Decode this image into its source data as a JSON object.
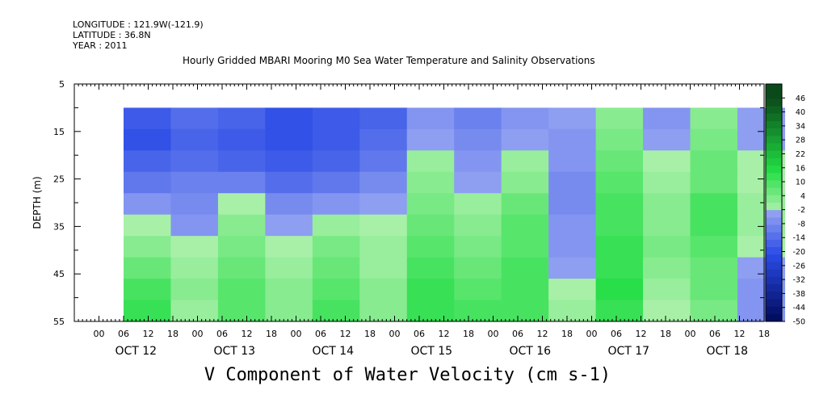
{
  "header": {
    "longitude": "LONGITUDE : 121.9W(-121.9)",
    "latitude": "LATITUDE : 36.8N",
    "year": "YEAR : 2011"
  },
  "title": "Hourly Gridded MBARI Mooring M0 Sea Water Temperature and Salinity Observations",
  "variable_label": "V Component of Water Velocity (cm s-1)",
  "colors": {
    "negative_dark": "#000a5a",
    "negative_mid": "#2a4be6",
    "negative_light": "#9aa8f2",
    "positive_light": "#a8f0a8",
    "positive_mid": "#22dd44",
    "positive_dark": "#0a4a1a"
  },
  "chart_data": {
    "type": "heatmap",
    "title": "Hourly Gridded MBARI Mooring M0 Sea Water Temperature and Salinity Observations",
    "ylabel": "DEPTH (m)",
    "xlabel": "",
    "ylim": [
      55,
      5
    ],
    "y_ticks": [
      5,
      15,
      25,
      35,
      45,
      55
    ],
    "x_days": [
      "OCT 12",
      "OCT 13",
      "OCT 14",
      "OCT 15",
      "OCT 16",
      "OCT 17",
      "OCT 18"
    ],
    "x_hour_labels": [
      "00",
      "06",
      "12",
      "18"
    ],
    "data_extent": {
      "depth_top": 10,
      "depth_bottom": 55,
      "start": "Oct 12 06:00",
      "end": "Oct 18 23:00"
    },
    "colorbar_levels": [
      -50,
      -44,
      -38,
      -32,
      -26,
      -20,
      -14,
      -8,
      -2,
      4,
      10,
      16,
      22,
      28,
      34,
      40,
      46
    ],
    "grid": false,
    "legend_position": "right",
    "depths": [
      10,
      15,
      20,
      25,
      30,
      35,
      40,
      45,
      50,
      55
    ],
    "times": [
      "Oct12 06",
      "Oct12 18",
      "Oct13 06",
      "Oct13 18",
      "Oct14 06",
      "Oct14 18",
      "Oct15 06",
      "Oct15 18",
      "Oct16 06",
      "Oct16 18",
      "Oct17 06",
      "Oct17 18",
      "Oct18 06",
      "Oct18 18"
    ],
    "values": [
      [
        -18,
        -14,
        -16,
        -20,
        -18,
        -16,
        -6,
        -10,
        -6,
        -4,
        2,
        -6,
        2,
        -4
      ],
      [
        -20,
        -16,
        -18,
        -20,
        -18,
        -14,
        -4,
        -8,
        -4,
        -6,
        4,
        -4,
        4,
        -4
      ],
      [
        -16,
        -14,
        -16,
        -18,
        -16,
        -12,
        0,
        -6,
        0,
        -6,
        6,
        -2,
        6,
        -2
      ],
      [
        -12,
        -10,
        -10,
        -14,
        -12,
        -8,
        2,
        -4,
        2,
        -8,
        8,
        0,
        6,
        -2
      ],
      [
        -6,
        -8,
        -2,
        -8,
        -6,
        -4,
        4,
        0,
        6,
        -8,
        10,
        2,
        10,
        0
      ],
      [
        -2,
        -6,
        2,
        -4,
        0,
        -2,
        6,
        2,
        8,
        -6,
        10,
        2,
        10,
        0
      ],
      [
        2,
        -2,
        4,
        -2,
        4,
        0,
        8,
        4,
        8,
        -6,
        12,
        4,
        8,
        -2
      ],
      [
        6,
        0,
        6,
        0,
        6,
        0,
        10,
        6,
        10,
        -4,
        12,
        2,
        6,
        -4
      ],
      [
        10,
        2,
        8,
        2,
        8,
        2,
        12,
        8,
        10,
        -2,
        14,
        0,
        6,
        -6
      ],
      [
        12,
        0,
        8,
        2,
        10,
        2,
        12,
        10,
        10,
        0,
        12,
        -2,
        4,
        -6
      ]
    ]
  }
}
